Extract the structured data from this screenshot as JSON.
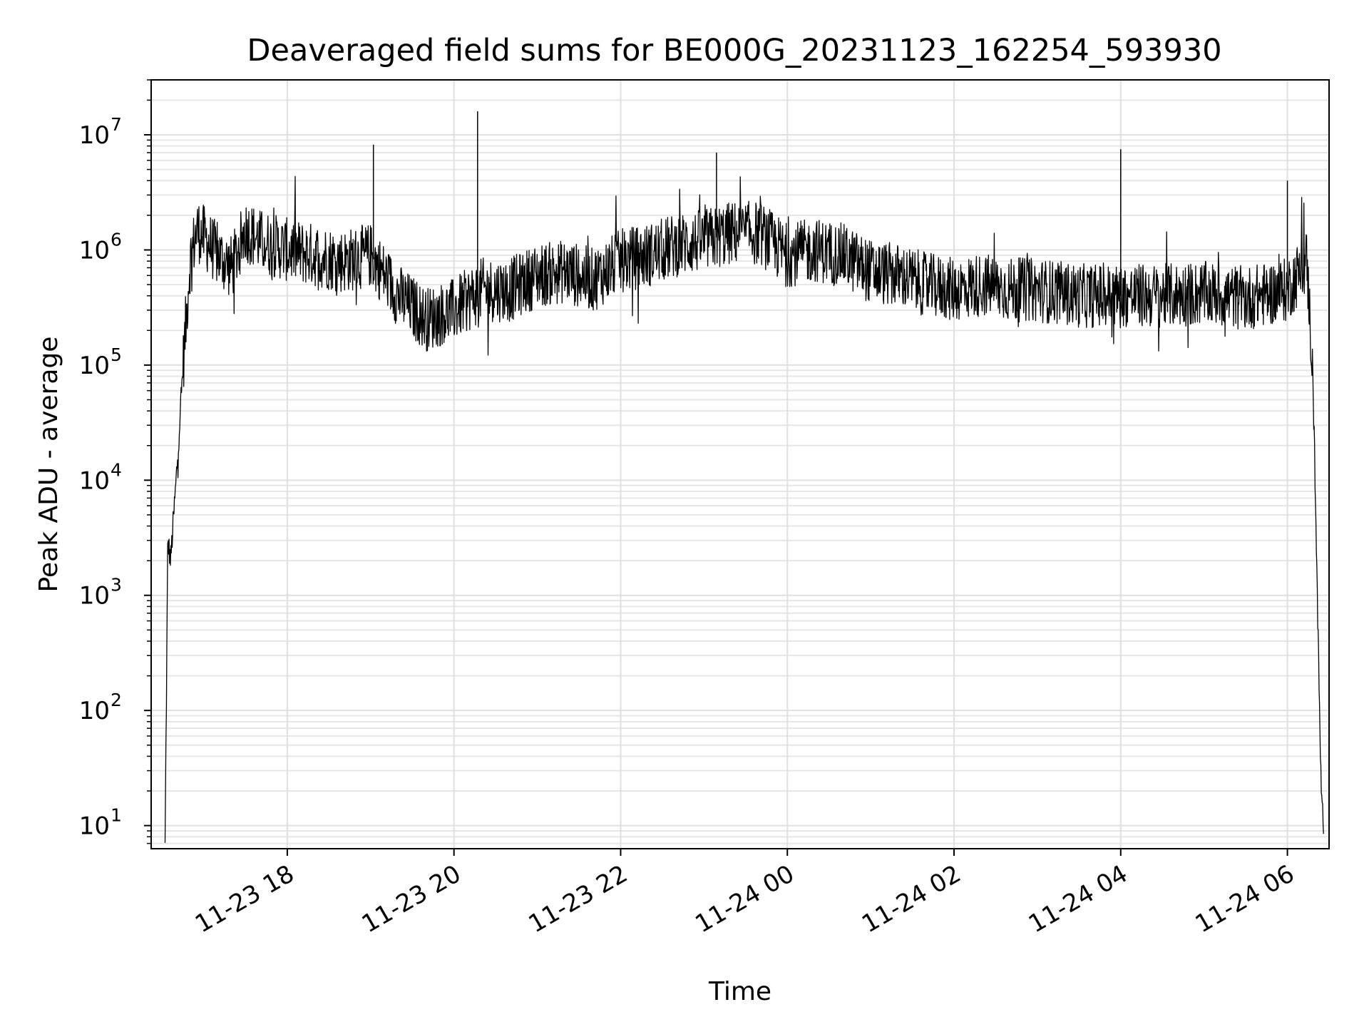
{
  "chart_data": {
    "type": "line",
    "title": "Deaveraged field sums for BE000G_20231123_162254_593930",
    "xlabel": "Time",
    "ylabel": "Peak ADU - average",
    "yscale": "log",
    "grid": true,
    "x_range": [
      "2023-11-23 16:22",
      "2023-11-24 06:30"
    ],
    "ylim": [
      6.3,
      30000000
    ],
    "x_ticks": [
      "11-23 18",
      "11-23 20",
      "11-23 22",
      "11-24 00",
      "11-24 02",
      "11-24 04",
      "11-24 06"
    ],
    "y_tick_exponents": [
      "1",
      "2",
      "3",
      "4",
      "5",
      "6",
      "7"
    ],
    "y_tick_base": "10",
    "line_color": "#000000",
    "series": [
      {
        "time": [
          "2023-11-23 16:32",
          "2023-11-23 16:34",
          "2023-11-23 16:36",
          "2023-11-23 16:40",
          "2023-11-23 16:45",
          "2023-11-23 16:50",
          "2023-11-23 16:55",
          "2023-11-23 17:00",
          "2023-11-23 17:10",
          "2023-11-23 17:20",
          "2023-11-23 17:30",
          "2023-11-23 17:40",
          "2023-11-23 18:00",
          "2023-11-23 18:20",
          "2023-11-23 18:40",
          "2023-11-23 19:00",
          "2023-11-23 19:20",
          "2023-11-23 19:40",
          "2023-11-23 20:00",
          "2023-11-23 20:20",
          "2023-11-23 20:40",
          "2023-11-23 21:00",
          "2023-11-23 21:20",
          "2023-11-23 21:40",
          "2023-11-23 22:00",
          "2023-11-23 22:20",
          "2023-11-23 22:40",
          "2023-11-23 23:00",
          "2023-11-23 23:20",
          "2023-11-23 23:40",
          "2023-11-24 00:00",
          "2023-11-24 00:20",
          "2023-11-24 00:40",
          "2023-11-24 01:00",
          "2023-11-24 01:20",
          "2023-11-24 01:40",
          "2023-11-24 02:00",
          "2023-11-24 02:20",
          "2023-11-24 02:40",
          "2023-11-24 03:00",
          "2023-11-24 03:30",
          "2023-11-24 04:00",
          "2023-11-24 04:30",
          "2023-11-24 05:00",
          "2023-11-24 05:30",
          "2023-11-24 06:00",
          "2023-11-24 06:14",
          "2023-11-24 06:18",
          "2023-11-24 06:20",
          "2023-11-24 06:22",
          "2023-11-24 06:24",
          "2023-11-24 06:26"
        ],
        "values": [
          6.5,
          3000,
          2000,
          10000,
          100000,
          800000,
          1500000,
          1300000,
          900000,
          700000,
          1500000,
          1200000,
          1000000,
          900000,
          800000,
          900000,
          400000,
          250000,
          300000,
          450000,
          450000,
          600000,
          650000,
          550000,
          800000,
          900000,
          1100000,
          1200000,
          1400000,
          1400000,
          900000,
          1000000,
          900000,
          650000,
          600000,
          500000,
          450000,
          500000,
          450000,
          450000,
          400000,
          400000,
          400000,
          420000,
          380000,
          450000,
          800000,
          100000,
          10000,
          500,
          30,
          6.5
        ]
      }
    ],
    "spikes": [
      {
        "time": "2023-11-23 20:17",
        "value": 16000000
      },
      {
        "time": "2023-11-23 19:02",
        "value": 8200000
      },
      {
        "time": "2023-11-23 23:09",
        "value": 7000000
      },
      {
        "time": "2023-11-24 04:00",
        "value": 7500000
      },
      {
        "time": "2023-11-24 06:00",
        "value": 4000000
      }
    ]
  }
}
